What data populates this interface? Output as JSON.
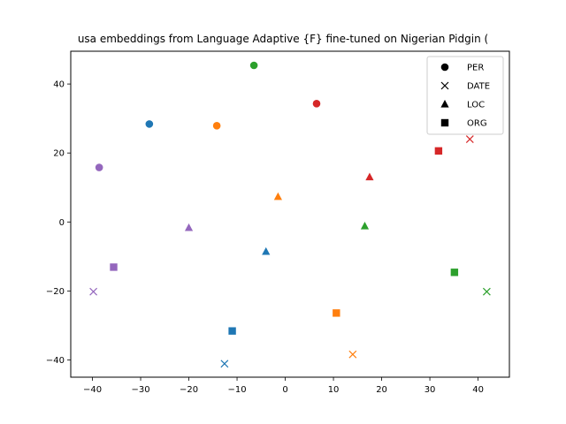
{
  "chart_data": {
    "type": "scatter",
    "title": "usa embeddings from Language Adaptive {F} fine-tuned on Nigerian Pidgin (",
    "xlabel": "",
    "ylabel": "",
    "xlim": [
      -44.5,
      46.5
    ],
    "ylim": [
      -45,
      49.5
    ],
    "xticks": [
      -40,
      -30,
      -20,
      -10,
      0,
      10,
      20,
      30,
      40
    ],
    "yticks": [
      -40,
      -20,
      0,
      20,
      40
    ],
    "grid": false,
    "legend_position": "top-right",
    "legend": [
      {
        "label": "PER",
        "marker": "circle"
      },
      {
        "label": "DATE",
        "marker": "x"
      },
      {
        "label": "LOC",
        "marker": "triangle"
      },
      {
        "label": "ORG",
        "marker": "square"
      }
    ],
    "colors": {
      "blue": "#1f77b4",
      "orange": "#ff7f0e",
      "green": "#2ca02c",
      "red": "#d62728",
      "purple": "#9467bd"
    },
    "points": [
      {
        "x": -28.2,
        "y": 28.4,
        "marker": "circle",
        "color": "blue"
      },
      {
        "x": -14.2,
        "y": 27.9,
        "marker": "circle",
        "color": "orange"
      },
      {
        "x": -6.5,
        "y": 45.4,
        "marker": "circle",
        "color": "green"
      },
      {
        "x": 6.5,
        "y": 34.3,
        "marker": "circle",
        "color": "red"
      },
      {
        "x": -38.6,
        "y": 15.8,
        "marker": "circle",
        "color": "purple"
      },
      {
        "x": -12.6,
        "y": -41.1,
        "marker": "x",
        "color": "blue"
      },
      {
        "x": 14.0,
        "y": -38.4,
        "marker": "x",
        "color": "orange"
      },
      {
        "x": 41.8,
        "y": -20.2,
        "marker": "x",
        "color": "green"
      },
      {
        "x": 38.3,
        "y": 24.0,
        "marker": "x",
        "color": "red"
      },
      {
        "x": -39.8,
        "y": -20.2,
        "marker": "x",
        "color": "purple"
      },
      {
        "x": -4.0,
        "y": -8.6,
        "marker": "triangle",
        "color": "blue"
      },
      {
        "x": -1.5,
        "y": 7.3,
        "marker": "triangle",
        "color": "orange"
      },
      {
        "x": 16.5,
        "y": -1.2,
        "marker": "triangle",
        "color": "green"
      },
      {
        "x": 17.5,
        "y": 13.0,
        "marker": "triangle",
        "color": "red"
      },
      {
        "x": -20.0,
        "y": -1.7,
        "marker": "triangle",
        "color": "purple"
      },
      {
        "x": -11.0,
        "y": -31.6,
        "marker": "square",
        "color": "blue"
      },
      {
        "x": 10.6,
        "y": -26.4,
        "marker": "square",
        "color": "orange"
      },
      {
        "x": 35.1,
        "y": -14.6,
        "marker": "square",
        "color": "green"
      },
      {
        "x": 31.8,
        "y": 20.6,
        "marker": "square",
        "color": "red"
      },
      {
        "x": -35.6,
        "y": -13.1,
        "marker": "square",
        "color": "purple"
      }
    ]
  }
}
